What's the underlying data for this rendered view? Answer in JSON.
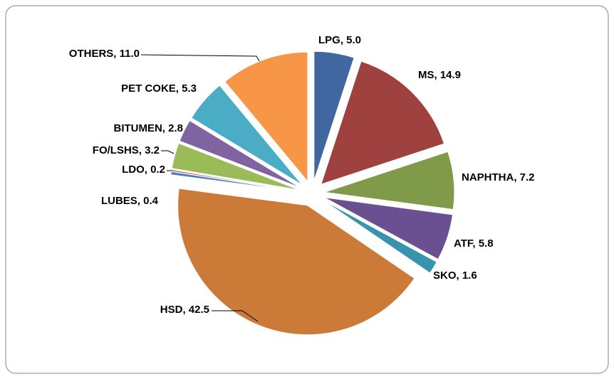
{
  "chart_data": {
    "type": "pie",
    "values": [
      5.0,
      14.9,
      7.2,
      5.8,
      1.6,
      42.5,
      0.4,
      0.2,
      3.2,
      2.8,
      5.3,
      11.0
    ],
    "value_labels": [
      "LPG, 5.0",
      "MS, 14.9",
      "NAPHTHA, 7.2",
      "ATF, 5.8",
      "SKO, 1.6",
      "HSD, 42.5",
      "LUBES, 0.4",
      "LDO, 0.2",
      "FO/LSHS, 3.2",
      "BITUMEN, 2.8",
      "PET COKE, 5.3",
      "OTHERS, 11.0"
    ],
    "colors": [
      "#4167a0",
      "#9e413f",
      "#7f9a48",
      "#6a5090",
      "#3a93ad",
      "#cc7a38",
      "#4f7fbf",
      "#c0504d",
      "#9bbb59",
      "#8064a2",
      "#4bacc6",
      "#f79646"
    ]
  }
}
